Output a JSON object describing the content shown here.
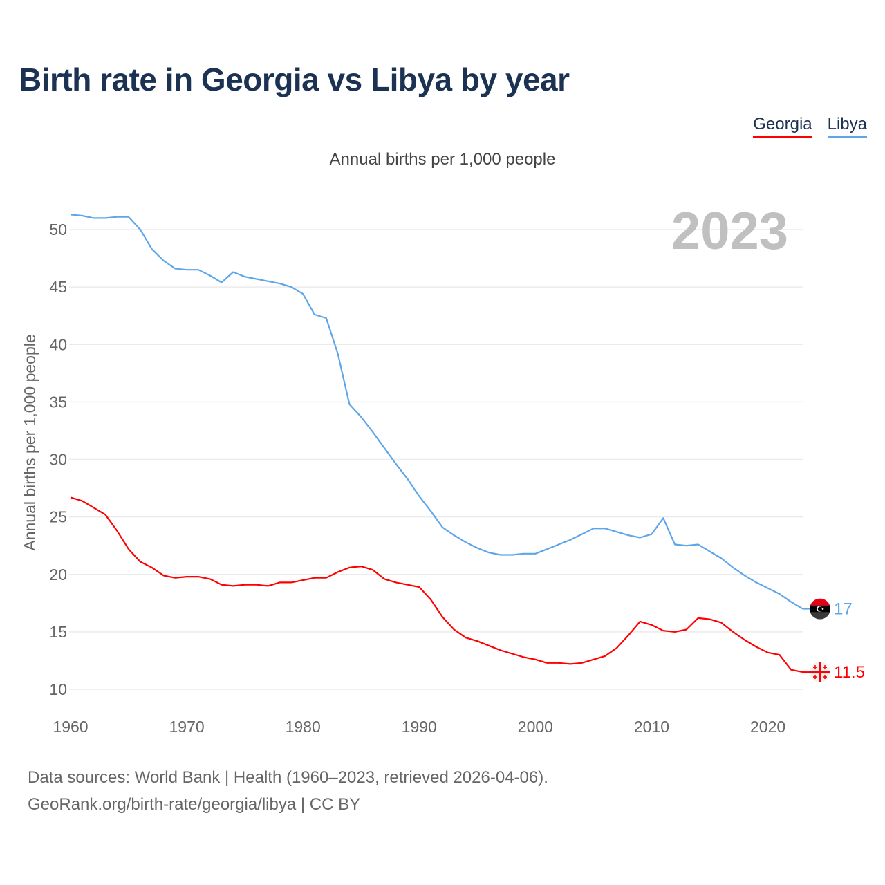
{
  "title": "Birth rate in Georgia vs Libya by year",
  "subtitle": "Annual births per 1,000 people",
  "year_watermark": "2023",
  "footer": {
    "line1": "Data sources: World Bank | Health (1960–2023, retrieved 2026-04-06).",
    "line2": "GeoRank.org/birth-rate/georgia/libya | CC BY"
  },
  "chart_data": {
    "type": "line",
    "title": "Birth rate in Georgia vs Libya by year",
    "xlabel": "",
    "ylabel": "Annual births per 1,000 people",
    "xlim": [
      1960,
      2023
    ],
    "ylim": [
      10,
      50
    ],
    "xticks": [
      "1960",
      "1970",
      "1980",
      "1990",
      "2000",
      "2010",
      "2020"
    ],
    "yticks": [
      "10",
      "15",
      "20",
      "25",
      "30",
      "35",
      "40",
      "45",
      "50"
    ],
    "grid": true,
    "legend": "top-right",
    "x": [
      1960,
      1961,
      1962,
      1963,
      1964,
      1965,
      1966,
      1967,
      1968,
      1969,
      1970,
      1971,
      1972,
      1973,
      1974,
      1975,
      1976,
      1977,
      1978,
      1979,
      1980,
      1981,
      1982,
      1983,
      1984,
      1985,
      1986,
      1987,
      1988,
      1989,
      1990,
      1991,
      1992,
      1993,
      1994,
      1995,
      1996,
      1997,
      1998,
      1999,
      2000,
      2001,
      2002,
      2003,
      2004,
      2005,
      2006,
      2007,
      2008,
      2009,
      2010,
      2011,
      2012,
      2013,
      2014,
      2015,
      2016,
      2017,
      2018,
      2019,
      2020,
      2021,
      2022,
      2023
    ],
    "series": [
      {
        "name": "Georgia",
        "color": "#ff0000",
        "end_label": "11.5",
        "flag": "georgia-flag",
        "values": [
          26.7,
          26.4,
          25.8,
          25.2,
          23.8,
          22.2,
          21.1,
          20.6,
          19.9,
          19.7,
          19.8,
          19.8,
          19.6,
          19.1,
          19.0,
          19.1,
          19.1,
          19.0,
          19.3,
          19.3,
          19.5,
          19.7,
          19.7,
          20.2,
          20.6,
          20.7,
          20.4,
          19.6,
          19.3,
          19.1,
          18.9,
          17.8,
          16.3,
          15.2,
          14.5,
          14.2,
          13.8,
          13.4,
          13.1,
          12.8,
          12.6,
          12.3,
          12.3,
          12.2,
          12.3,
          12.6,
          12.9,
          13.6,
          14.7,
          15.9,
          15.6,
          15.1,
          15.0,
          15.2,
          16.2,
          16.1,
          15.8,
          15.0,
          14.3,
          13.7,
          13.2,
          13.0,
          11.7,
          11.5
        ]
      },
      {
        "name": "Libya",
        "color": "#5ea6ea",
        "end_label": "17",
        "flag": "libya-flag",
        "values": [
          51.3,
          51.2,
          51.0,
          51.0,
          51.1,
          51.1,
          50.0,
          48.3,
          47.3,
          46.6,
          46.5,
          46.5,
          46.0,
          45.4,
          46.3,
          45.9,
          45.7,
          45.5,
          45.3,
          45.0,
          44.4,
          42.6,
          42.3,
          39.2,
          34.8,
          33.7,
          32.4,
          31.0,
          29.6,
          28.3,
          26.8,
          25.5,
          24.1,
          23.4,
          22.8,
          22.3,
          21.9,
          21.7,
          21.7,
          21.8,
          21.8,
          22.2,
          22.6,
          23.0,
          23.5,
          24.0,
          24.0,
          23.7,
          23.4,
          23.2,
          23.5,
          24.9,
          22.6,
          22.5,
          22.6,
          22.0,
          21.4,
          20.6,
          19.9,
          19.3,
          18.8,
          18.3,
          17.6,
          17.0
        ]
      }
    ]
  }
}
